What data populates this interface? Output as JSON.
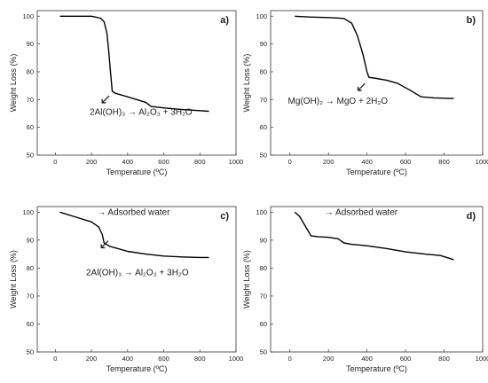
{
  "chart_data": [
    {
      "panel": "a)",
      "type": "line",
      "xlabel": "Temperature (ºC)",
      "ylabel": "Weight Loss (%)",
      "xlim": [
        -100,
        1000
      ],
      "ylim": [
        50,
        102
      ],
      "xticks": [
        "0",
        "200",
        "400",
        "600",
        "800",
        "1000"
      ],
      "yticks": [
        "50",
        "60",
        "70",
        "80",
        "90",
        "100"
      ],
      "annotations": [
        {
          "text": "2Al(OH)₃ → Al₂O₃ + 3H₂O",
          "x": 190,
          "y": 64.5
        },
        {
          "text": "↙",
          "x": 245,
          "y": 68.5
        }
      ],
      "series": [
        {
          "x": [
            25,
            100,
            200,
            250,
            270,
            285,
            295,
            305,
            315,
            330,
            400,
            500,
            530,
            600,
            700,
            800,
            850
          ],
          "y": [
            100,
            100,
            100,
            99.3,
            98,
            94,
            88,
            80,
            73,
            72.3,
            71,
            69,
            67.5,
            67,
            66.4,
            66,
            65.8
          ],
          "color": "#000000"
        }
      ]
    },
    {
      "panel": "b)",
      "type": "line",
      "xlabel": "Temperature (ºC)",
      "ylabel": "Weight Loss (%)",
      "xlim": [
        -100,
        1000
      ],
      "ylim": [
        50,
        102
      ],
      "xticks": [
        "0",
        "200",
        "400",
        "600",
        "800",
        "1000"
      ],
      "yticks": [
        "50",
        "60",
        "70",
        "80",
        "90",
        "100"
      ],
      "annotations": [
        {
          "text": "Mg(OH)₂ → MgO + 2H₂O",
          "x": -10,
          "y": 68.5
        },
        {
          "text": "↙",
          "x": 340,
          "y": 73
        }
      ],
      "series": [
        {
          "x": [
            25,
            100,
            200,
            280,
            320,
            350,
            380,
            400,
            410,
            450,
            500,
            560,
            620,
            680,
            750,
            850
          ],
          "y": [
            100,
            99.7,
            99.5,
            99.2,
            97.5,
            93,
            86,
            80,
            78,
            77.6,
            77,
            75.8,
            73.5,
            71,
            70.6,
            70.4
          ],
          "color": "#000000"
        }
      ]
    },
    {
      "panel": "c)",
      "type": "line",
      "xlabel": "Temperature (ºC)",
      "ylabel": "Weight Loss (%)",
      "xlim": [
        -100,
        1000
      ],
      "ylim": [
        50,
        102
      ],
      "xticks": [
        "0",
        "200",
        "400",
        "600",
        "800",
        "1000"
      ],
      "yticks": [
        "50",
        "60",
        "70",
        "80",
        "90",
        "100"
      ],
      "annotations": [
        {
          "text": "→ Adsorbed water",
          "x": 230,
          "y": 99
        },
        {
          "text": "↙",
          "x": 240,
          "y": 87
        },
        {
          "text": "2Al(OH)₃ → Al₂O₃ + 3H₂O",
          "x": 170,
          "y": 77.5
        }
      ],
      "series": [
        {
          "x": [
            25,
            100,
            200,
            240,
            260,
            270,
            300,
            400,
            500,
            600,
            700,
            800,
            850
          ],
          "y": [
            100,
            98.5,
            96.5,
            94.7,
            92,
            89,
            87.8,
            86,
            85,
            84.3,
            84,
            83.8,
            83.8
          ],
          "color": "#000000"
        }
      ]
    },
    {
      "panel": "d)",
      "type": "line",
      "xlabel": "Temperature (ºC)",
      "ylabel": "Weight Loss (%)",
      "xlim": [
        -100,
        1000
      ],
      "ylim": [
        50,
        102
      ],
      "xticks": [
        "0",
        "200",
        "400",
        "600",
        "800",
        "1000"
      ],
      "yticks": [
        "50",
        "60",
        "70",
        "80",
        "90",
        "100"
      ],
      "annotations": [
        {
          "text": "→ Adsorbed water",
          "x": 180,
          "y": 99
        }
      ],
      "series": [
        {
          "x": [
            25,
            50,
            80,
            110,
            150,
            200,
            250,
            280,
            320,
            400,
            500,
            600,
            700,
            780,
            850
          ],
          "y": [
            100,
            98.5,
            95,
            91.5,
            91.2,
            91,
            90.5,
            89,
            88.5,
            88,
            87,
            85.8,
            85,
            84.5,
            83
          ],
          "color": "#000000"
        }
      ]
    }
  ]
}
